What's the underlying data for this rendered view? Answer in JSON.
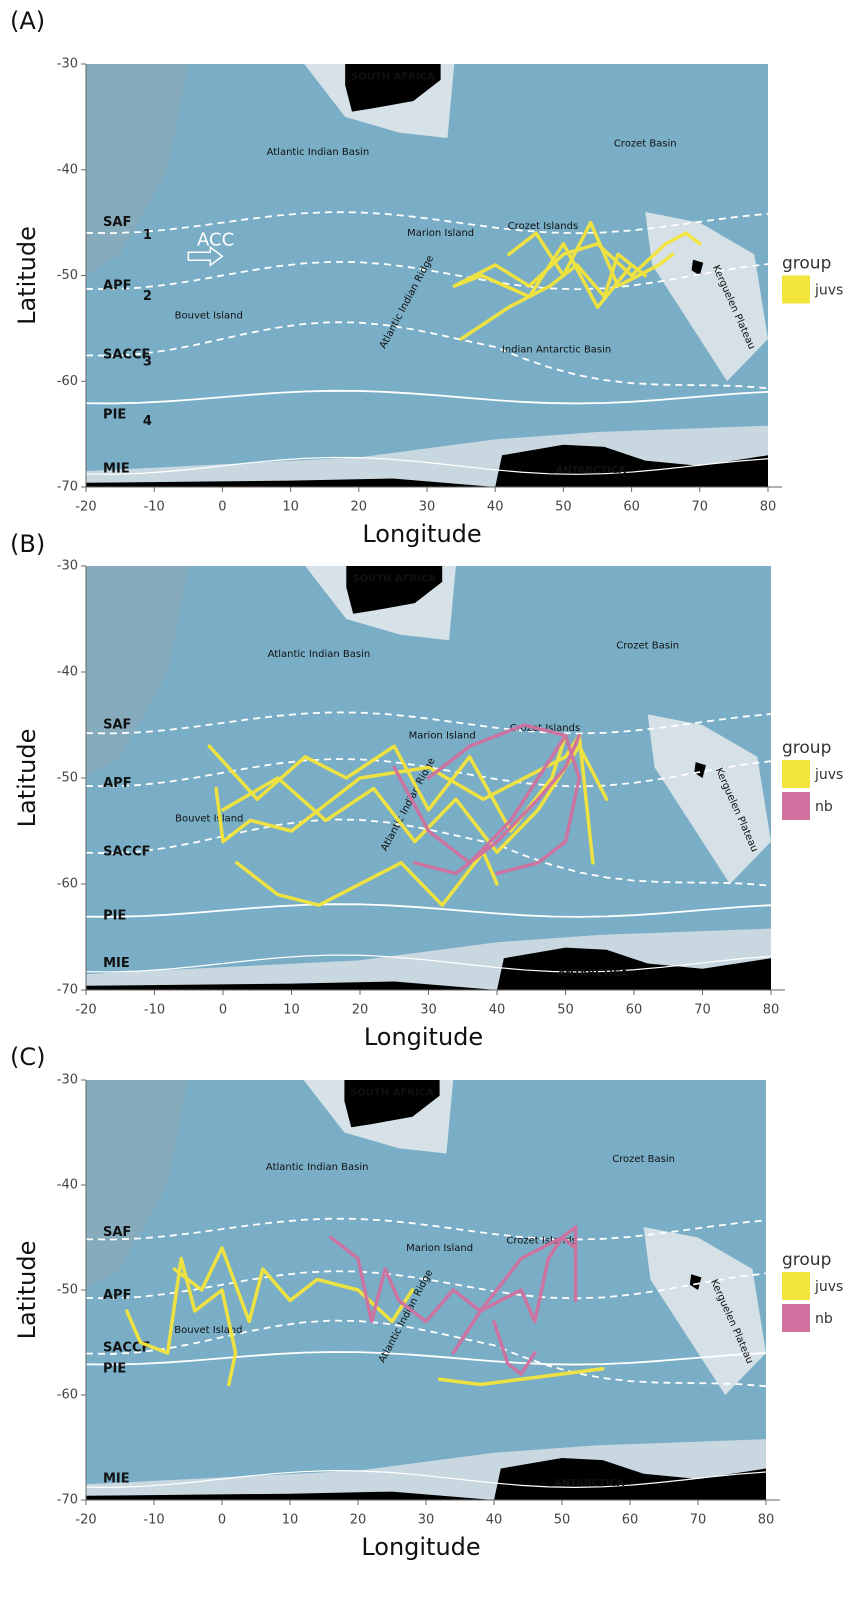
{
  "chart_data": [
    {
      "type": "map",
      "panel_label": "(A)",
      "xlabel": "Longitude",
      "ylabel": "Latitude",
      "xlim": [
        -20,
        80
      ],
      "ylim": [
        -70,
        -30
      ],
      "xticks": [
        -20,
        -10,
        0,
        10,
        20,
        30,
        40,
        50,
        60,
        70,
        80
      ],
      "yticks": [
        -70,
        -60,
        -50,
        -40,
        -30
      ],
      "place_labels": [
        "SOUTH AFRICA",
        "Atlantic Indian Basin",
        "Crozet Basin",
        "Crozet Islands",
        "Marion Island",
        "Atlantic Indian Ridge",
        "Bouvet Island",
        "Kerguelen Plateau",
        "ANTARCTICA",
        "Indian Antarctic Basin"
      ],
      "front_labels": [
        "SAF",
        "APF",
        "SACCF",
        "PIE",
        "MIE"
      ],
      "zone_labels": [
        "1",
        "2",
        "3",
        "4"
      ],
      "current_label": "ACC",
      "legend_title": "group",
      "series": [
        {
          "name": "juvs",
          "color": "#f3e53b",
          "x": [
            34,
            40,
            45,
            50,
            55,
            60,
            65,
            68,
            70,
            null,
            35,
            42,
            48,
            52,
            56,
            58,
            62,
            null,
            34,
            38,
            45,
            50,
            55,
            60,
            null,
            42,
            46,
            50,
            54,
            58,
            64,
            66
          ],
          "y": [
            -51,
            -49,
            -51,
            -48,
            -47,
            -50,
            -47,
            -46,
            -47,
            null,
            -56,
            -53,
            -51,
            -49,
            -52,
            -48,
            -50,
            null,
            -51,
            -50,
            -52,
            -47,
            -53,
            -49,
            null,
            -48,
            -46,
            -50,
            -45,
            -51,
            -49,
            -48
          ]
        }
      ]
    },
    {
      "type": "map",
      "panel_label": "(B)",
      "xlabel": "Longitude",
      "ylabel": "Latitude",
      "xlim": [
        -20,
        80
      ],
      "ylim": [
        -70,
        -30
      ],
      "xticks": [
        -20,
        -10,
        0,
        10,
        20,
        30,
        40,
        50,
        60,
        70,
        80
      ],
      "yticks": [
        -70,
        -60,
        -50,
        -40,
        -30
      ],
      "place_labels": [
        "SOUTH AFRICA",
        "Atlantic Indian Basin",
        "Crozet Basin",
        "Crozet Islands",
        "Marion Island",
        "Atlantic Indian Ridge",
        "Bouvet Island",
        "Kerguelen Plateau",
        "ANTARCTICA"
      ],
      "front_labels": [
        "SAF",
        "APF",
        "SACCF",
        "PIE",
        "MIE"
      ],
      "legend_title": "group",
      "series": [
        {
          "name": "juvs",
          "color": "#f3e53b",
          "x": [
            -2,
            5,
            12,
            18,
            25,
            30,
            36,
            42,
            48,
            50,
            null,
            0,
            8,
            15,
            22,
            28,
            34,
            40,
            46,
            52,
            56,
            null,
            2,
            8,
            14,
            20,
            26,
            32,
            38,
            40,
            null,
            -1,
            0,
            4,
            10,
            20,
            30,
            38,
            50,
            52,
            54
          ],
          "y": [
            -47,
            -52,
            -48,
            -50,
            -47,
            -53,
            -48,
            -55,
            -50,
            -46,
            null,
            -53,
            -50,
            -54,
            -51,
            -56,
            -52,
            -57,
            -53,
            -47,
            -52,
            null,
            -58,
            -61,
            -62,
            -60,
            -58,
            -62,
            -57,
            -60,
            null,
            -51,
            -56,
            -54,
            -55,
            -50,
            -49,
            -52,
            -48,
            -46,
            -58
          ]
        },
        {
          "name": "nb",
          "color": "#d0719f",
          "x": [
            25,
            30,
            36,
            42,
            48,
            50,
            null,
            28,
            34,
            40,
            46,
            50,
            52,
            null,
            30,
            36,
            44,
            50,
            52,
            50,
            46,
            40
          ],
          "y": [
            -49,
            -55,
            -58,
            -54,
            -48,
            -46,
            null,
            -58,
            -59,
            -56,
            -52,
            -49,
            -46,
            null,
            -50,
            -47,
            -45,
            -46,
            -50,
            -56,
            -58,
            -59
          ]
        }
      ]
    },
    {
      "type": "map",
      "panel_label": "(C)",
      "xlabel": "Longitude",
      "ylabel": "Latitude",
      "xlim": [
        -20,
        80
      ],
      "ylim": [
        -70,
        -30
      ],
      "xticks": [
        -20,
        -10,
        0,
        10,
        20,
        30,
        40,
        50,
        60,
        70,
        80
      ],
      "yticks": [
        -70,
        -60,
        -50,
        -40,
        -30
      ],
      "place_labels": [
        "SOUTH AFRICA",
        "Atlantic Indian Basin",
        "Crozet Basin",
        "Crozet Islands",
        "Marion Island",
        "Atlantic Indian Ridge",
        "Bouvet Island",
        "Kerguelen Plateau",
        "ANTARCTICA"
      ],
      "front_labels": [
        "SAF",
        "APF",
        "SACCF",
        "PIE",
        "MIE"
      ],
      "legend_title": "group",
      "series": [
        {
          "name": "juvs",
          "color": "#f3e53b",
          "x": [
            -14,
            -12,
            -8,
            -6,
            -4,
            0,
            2,
            1,
            null,
            -7,
            -3,
            0,
            4,
            6,
            10,
            14,
            20,
            25,
            28,
            null,
            32,
            38,
            44,
            50,
            56
          ],
          "y": [
            -52,
            -55,
            -56,
            -47,
            -52,
            -50,
            -56,
            -59,
            null,
            -48,
            -50,
            -46,
            -53,
            -48,
            -51,
            -49,
            -50,
            -53,
            -50,
            null,
            -58.5,
            -59,
            -58.5,
            -58,
            -57.5
          ]
        },
        {
          "name": "nb",
          "color": "#d0719f",
          "x": [
            16,
            20,
            22,
            24,
            26,
            30,
            34,
            38,
            44,
            50,
            52,
            52,
            null,
            34,
            38,
            44,
            46,
            48,
            50,
            52,
            null,
            40,
            42,
            44,
            46
          ],
          "y": [
            -45,
            -47,
            -53,
            -48,
            -51,
            -53,
            -50,
            -52,
            -47,
            -45,
            -44,
            -51,
            null,
            -56,
            -52,
            -50,
            -53,
            -47,
            -45,
            -46,
            null,
            -53,
            -57,
            -58,
            -56
          ]
        }
      ]
    }
  ]
}
